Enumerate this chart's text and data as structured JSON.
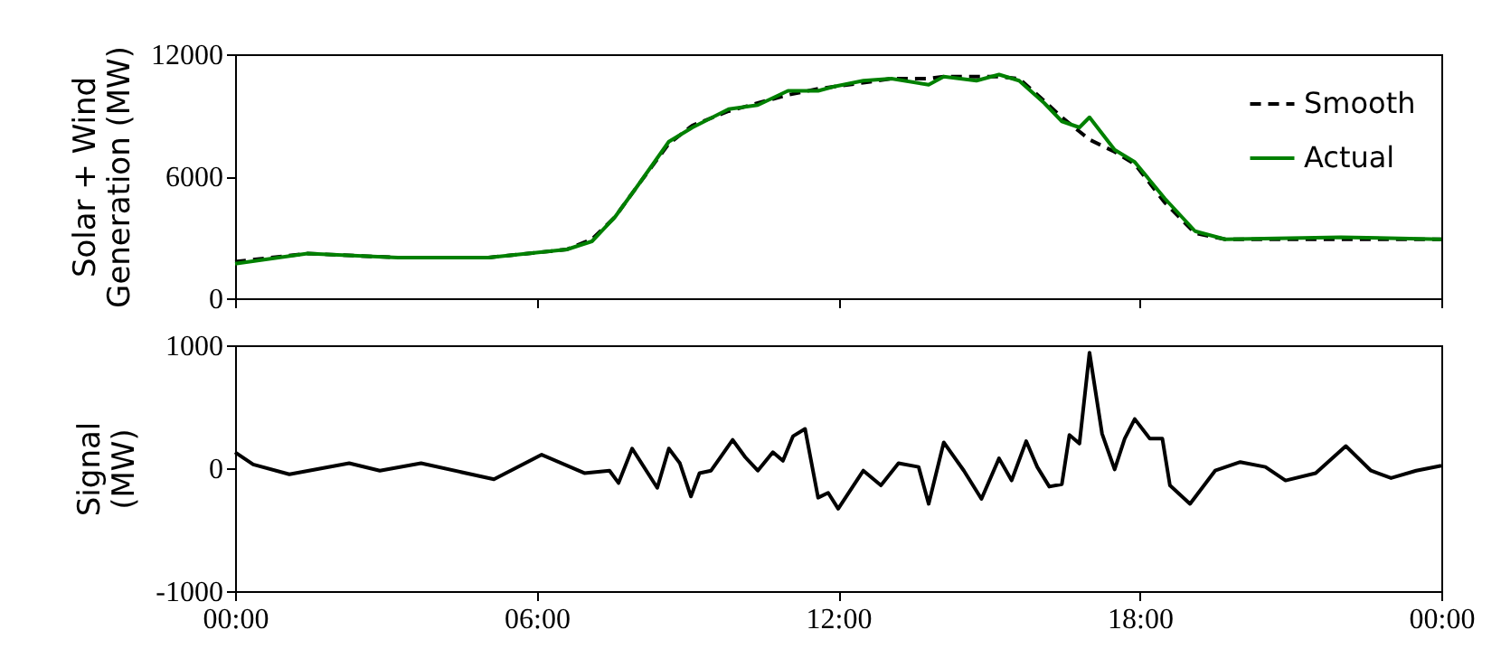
{
  "chart_data": [
    {
      "type": "line",
      "ylabel": "Solar + Wind\nGeneration (MW)",
      "xlim": [
        0,
        24
      ],
      "ylim": [
        0,
        12000
      ],
      "yticks": [
        0,
        6000,
        12000
      ],
      "xticks": [
        {
          "value": 0,
          "label": null
        },
        {
          "value": 6,
          "label": null
        },
        {
          "value": 12,
          "label": null
        },
        {
          "value": 18,
          "label": null
        },
        {
          "value": 24,
          "label": null
        }
      ],
      "tick_labels": "y",
      "grid": false,
      "legend": "top right",
      "x": [
        0,
        1.44,
        3.24,
        5.04,
        6.6,
        7.1,
        7.56,
        8.0,
        8.63,
        9.1,
        9.82,
        10.4,
        11.0,
        11.6,
        11.9,
        12.5,
        13.06,
        13.8,
        14.1,
        14.75,
        15.2,
        15.6,
        16.1,
        16.45,
        16.8,
        17.0,
        17.5,
        17.9,
        18.5,
        19.1,
        19.7,
        22.0,
        24
      ],
      "series": [
        {
          "name": "Smooth",
          "color": "#000000",
          "line_style": "dashed",
          "values": [
            1800,
            2200,
            2000,
            2000,
            2400,
            2900,
            4000,
            5500,
            7600,
            8500,
            9200,
            9600,
            10000,
            10300,
            10400,
            10600,
            10800,
            10800,
            10900,
            10900,
            10900,
            10800,
            9700,
            8900,
            8200,
            7800,
            7200,
            6600,
            4700,
            3200,
            2900,
            2900,
            2900
          ]
        },
        {
          "name": "Actual",
          "color": "#008000",
          "line_style": "solid",
          "values": [
            1700,
            2200,
            2000,
            2000,
            2400,
            2800,
            4000,
            5500,
            7700,
            8400,
            9300,
            9500,
            10200,
            10200,
            10400,
            10700,
            10800,
            10500,
            10900,
            10700,
            11000,
            10700,
            9600,
            8700,
            8400,
            8900,
            7300,
            6700,
            4900,
            3300,
            2900,
            3000,
            2900
          ]
        }
      ]
    },
    {
      "type": "line",
      "ylabel": "Signal\n(MW)",
      "xlim": [
        0,
        24
      ],
      "ylim": [
        -1000,
        1000
      ],
      "yticks": [
        -1000,
        0,
        1000
      ],
      "xticks": [
        {
          "value": 0,
          "label": "00:00"
        },
        {
          "value": 6,
          "label": "06:00"
        },
        {
          "value": 12,
          "label": "12:00"
        },
        {
          "value": 18,
          "label": "18:00"
        },
        {
          "value": 24,
          "label": "00:00"
        }
      ],
      "grid": false,
      "legend": false,
      "x": [
        0,
        0.36,
        1.08,
        2.27,
        2.88,
        3.7,
        5.15,
        6.1,
        6.95,
        7.45,
        7.63,
        7.9,
        8.4,
        8.63,
        8.85,
        9.07,
        9.24,
        9.47,
        9.9,
        10.15,
        10.4,
        10.7,
        10.9,
        11.1,
        11.34,
        11.6,
        11.8,
        12.0,
        12.5,
        12.85,
        13.2,
        13.6,
        13.8,
        14.1,
        14.5,
        14.85,
        15.2,
        15.45,
        15.74,
        15.96,
        16.2,
        16.45,
        16.6,
        16.8,
        17.0,
        17.25,
        17.5,
        17.7,
        17.9,
        18.2,
        18.45,
        18.6,
        19.0,
        19.5,
        20.0,
        20.5,
        20.9,
        21.5,
        22.1,
        22.6,
        23.0,
        23.5,
        24
      ],
      "series": [
        {
          "color": "#000000",
          "values": [
            130,
            30,
            -50,
            40,
            -20,
            40,
            -90,
            110,
            -40,
            -20,
            -120,
            160,
            -160,
            160,
            40,
            -230,
            -40,
            -20,
            230,
            90,
            -20,
            130,
            60,
            260,
            320,
            -240,
            -200,
            -330,
            -20,
            -140,
            40,
            10,
            -290,
            210,
            -20,
            -250,
            80,
            -100,
            220,
            10,
            -150,
            -130,
            270,
            200,
            940,
            280,
            -10,
            240,
            400,
            240,
            240,
            -140,
            -290,
            -20,
            50,
            10,
            -100,
            -40,
            180,
            -20,
            -80,
            -20,
            20
          ]
        }
      ]
    }
  ]
}
